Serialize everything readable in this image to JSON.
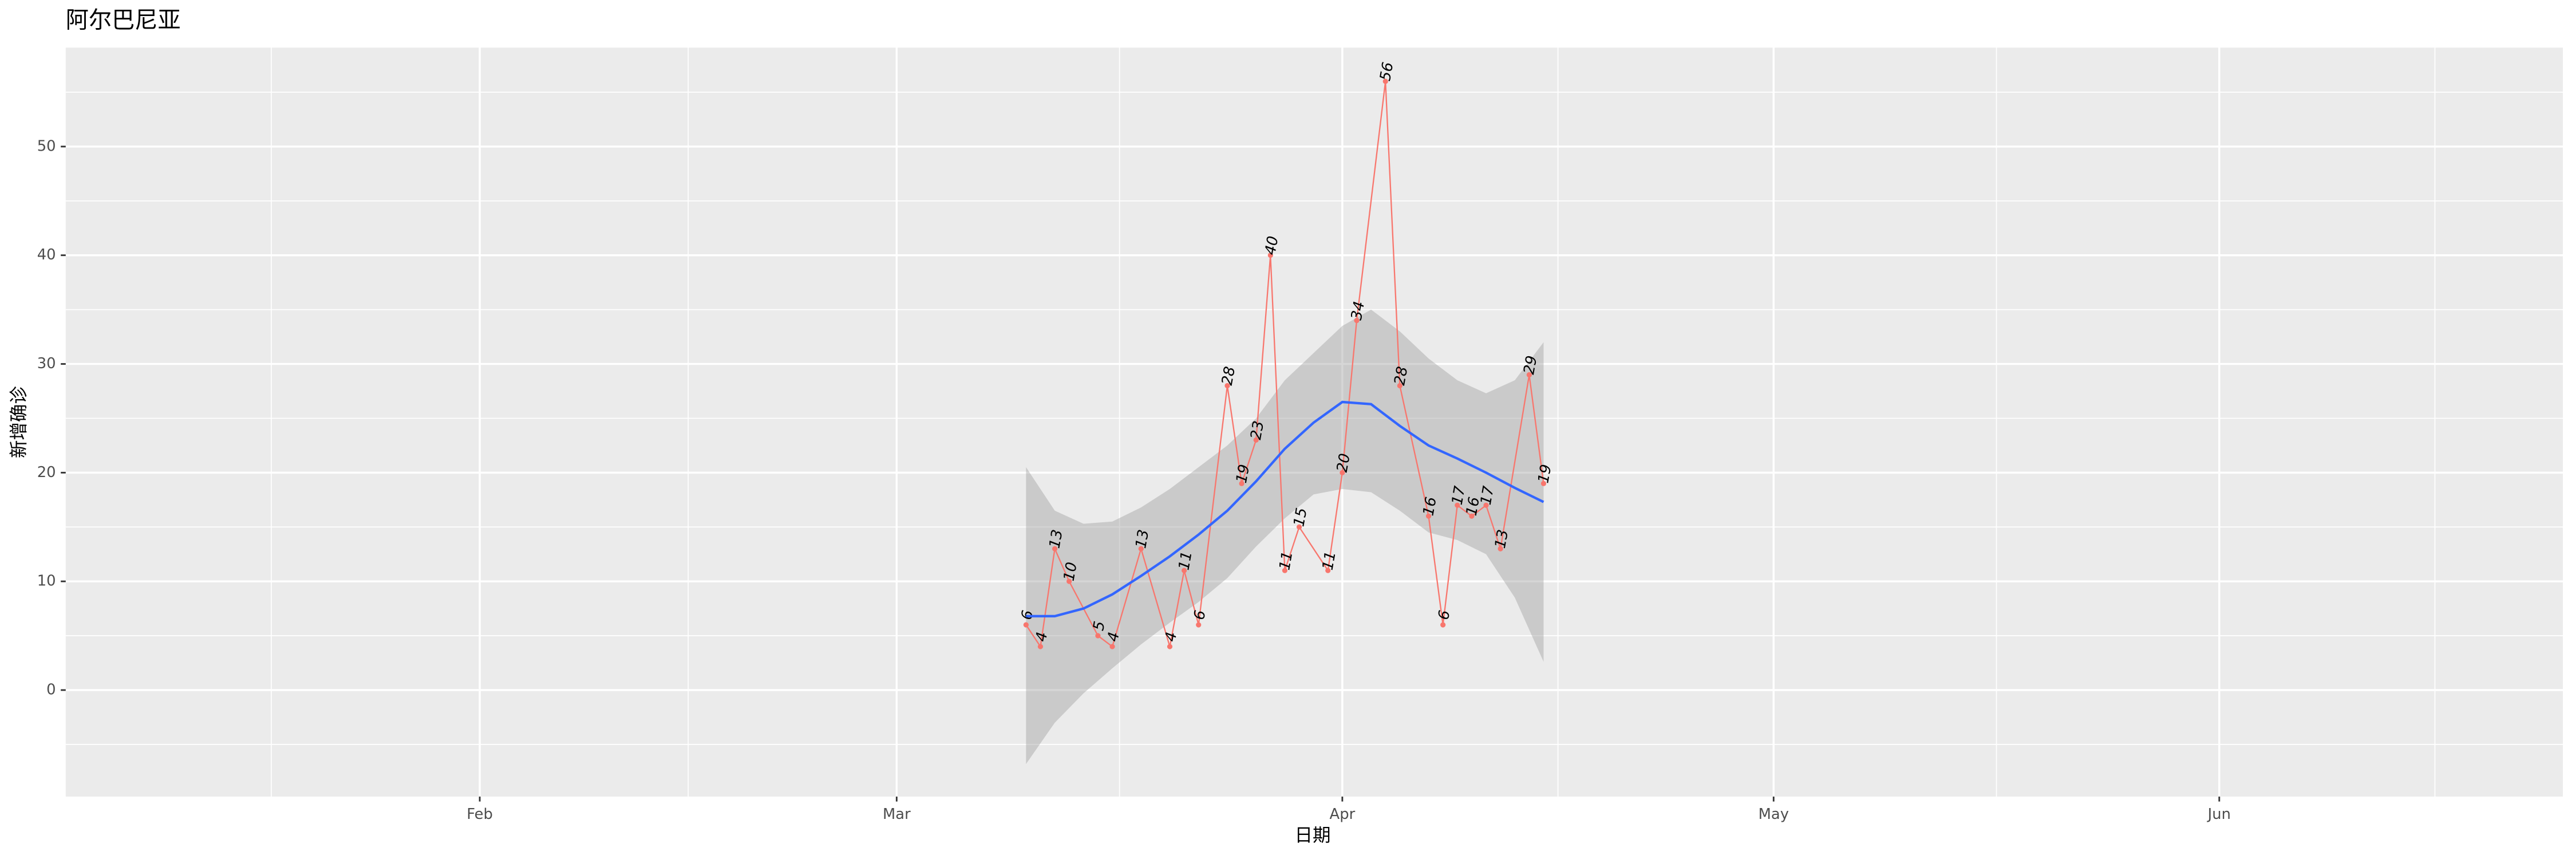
{
  "chart_data": {
    "type": "line",
    "title": "阿尔巴尼亚",
    "x_label": "日期",
    "y_label": "新增确诊",
    "xlim": [
      3.2,
      176.9
    ],
    "ylim": [
      -9.8,
      59.1
    ],
    "xticks": [
      {
        "value": 32,
        "label": "Feb"
      },
      {
        "value": 61,
        "label": "Mar"
      },
      {
        "value": 92,
        "label": "Apr"
      },
      {
        "value": 122,
        "label": "May"
      },
      {
        "value": 153,
        "label": "Jun"
      }
    ],
    "x_minor_ticks": [
      17.5,
      46.5,
      76.5,
      107,
      137.5,
      168
    ],
    "yticks": [
      0,
      10,
      20,
      30,
      40,
      50
    ],
    "y_minor_ticks": [
      -5,
      5,
      15,
      25,
      35,
      45,
      55
    ],
    "grid": true,
    "series": [
      {
        "color": "#F8766D",
        "x": [
          70,
          71,
          72,
          73,
          75,
          76,
          78,
          80,
          81,
          82,
          84,
          85,
          86,
          87,
          88,
          89,
          91,
          92,
          93,
          95,
          96,
          98,
          99,
          100,
          101,
          102,
          103,
          105,
          106
        ],
        "values": [
          6,
          4,
          13,
          10,
          5,
          4,
          13,
          4,
          11,
          6,
          28,
          19,
          23,
          40,
          11,
          15,
          11,
          20,
          34,
          56,
          28,
          16,
          6,
          17,
          16,
          17,
          13,
          29,
          19
        ]
      }
    ],
    "smooth": {
      "color": "#3366FF",
      "band_color": "#999999",
      "x": [
        70,
        72,
        74,
        76,
        78,
        80,
        82,
        84,
        86,
        88,
        90,
        92,
        94,
        96,
        98,
        100,
        102,
        104,
        106
      ],
      "values": [
        6.8,
        6.8,
        7.5,
        8.8,
        10.5,
        12.3,
        14.3,
        16.5,
        19.2,
        22.2,
        24.6,
        26.5,
        26.3,
        24.3,
        22.5,
        21.3,
        20.0,
        18.6,
        17.3
      ],
      "lower": [
        -6.8,
        -3,
        -0.3,
        2,
        4.2,
        6.2,
        8.1,
        10.3,
        13.2,
        15.8,
        18,
        18.5,
        18.2,
        16.5,
        14.5,
        13.8,
        12.5,
        8.5,
        2.6
      ],
      "upper": [
        20.5,
        16.5,
        15.3,
        15.5,
        16.8,
        18.5,
        20.5,
        22.5,
        25,
        28.5,
        31,
        33.5,
        35,
        33,
        30.5,
        28.5,
        27.3,
        28.5,
        32
      ]
    }
  }
}
